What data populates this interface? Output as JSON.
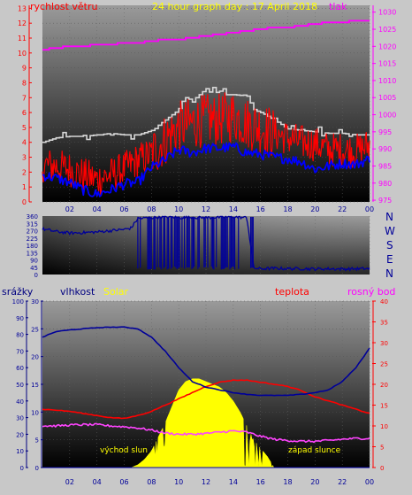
{
  "title": "24 hour graph day : 17 April 2018",
  "colors": {
    "background": "#c8c8c8",
    "wind_gust": "#d8d8d8",
    "wind_speed": "#ff0000",
    "wind_avg": "#0000ff",
    "pressure": "#ff00ff",
    "direction": "#000099",
    "humidity": "#000099",
    "solar": "#ffff00",
    "temperature": "#ff0000",
    "dewpoint": "#ff44ff",
    "rain": "#0000aa",
    "title": "#ffff00",
    "axis_red": "#ff0000",
    "axis_magenta": "#ff00ff",
    "axis_blue": "#000080",
    "axis_text": "#000099"
  },
  "x_ticks": [
    "02",
    "04",
    "06",
    "08",
    "10",
    "12",
    "14",
    "16",
    "18",
    "20",
    "22",
    "00"
  ],
  "wind_dir_labels": [
    "N",
    "W",
    "S",
    "E",
    "N"
  ],
  "annotations": {
    "sunrise": "východ slun",
    "sunset": "západ slunce"
  },
  "chart_data": [
    {
      "type": "line",
      "panel": "wind-pressure",
      "title": "24 hour graph day : 17 April 2018",
      "left_axis_label": "rychlost větru",
      "right_axis_label": "tlak",
      "left_ticks": [
        "0",
        "1",
        "2",
        "3",
        "4",
        "5",
        "6",
        "7",
        "8",
        "9",
        "10",
        "11",
        "12",
        "13"
      ],
      "right_ticks": [
        "975",
        "980",
        "985",
        "990",
        "995",
        "1000",
        "1005",
        "1010",
        "1015",
        "1020",
        "1025",
        "1030"
      ],
      "ylim_left": [
        0,
        13.2
      ],
      "ylim_right": [
        974.5,
        1032
      ],
      "x_range_hours": [
        0,
        24
      ],
      "series": [
        {
          "key": "gust",
          "axis": "left",
          "x": [
            0,
            1,
            2,
            3,
            4,
            5,
            6,
            7,
            8,
            9,
            10,
            10.5,
            11,
            12,
            13,
            13.5,
            14,
            15,
            15.5,
            16,
            17,
            18,
            19,
            20,
            21,
            22,
            23,
            24
          ],
          "values": [
            4.0,
            4.3,
            4.4,
            4.4,
            4.5,
            4.6,
            4.5,
            4.5,
            4.8,
            5.5,
            6.2,
            7.0,
            6.8,
            7.6,
            7.5,
            7.2,
            7.2,
            7.1,
            6.2,
            6.0,
            5.5,
            4.9,
            4.8,
            4.7,
            4.6,
            4.6,
            4.5,
            4.5
          ]
        },
        {
          "key": "speed",
          "axis": "left",
          "x": [
            0,
            1,
            2,
            3,
            4,
            5,
            6,
            7,
            8,
            9,
            10,
            11,
            12,
            13,
            14,
            15,
            16,
            17,
            18,
            19,
            20,
            21,
            22,
            23,
            24
          ],
          "values": [
            2.5,
            2.4,
            2.2,
            1.8,
            1.5,
            1.8,
            2.2,
            2.8,
            3.2,
            4.2,
            5.0,
            5.3,
            5.5,
            5.5,
            5.8,
            5.3,
            5.0,
            4.6,
            4.3,
            4.0,
            3.9,
            3.5,
            3.5,
            3.4,
            3.8
          ]
        },
        {
          "key": "avg",
          "axis": "left",
          "x": [
            0,
            1,
            2,
            3,
            4,
            5,
            6,
            7,
            8,
            9,
            10,
            11,
            12,
            13,
            14,
            15,
            16,
            17,
            18,
            19,
            20,
            21,
            22,
            23,
            24
          ],
          "values": [
            1.8,
            1.6,
            1.3,
            0.8,
            0.5,
            0.8,
            1.2,
            1.3,
            2.3,
            2.8,
            3.5,
            3.3,
            3.6,
            3.6,
            3.7,
            3.3,
            3.2,
            3.0,
            2.9,
            2.7,
            2.2,
            2.4,
            2.6,
            2.5,
            2.9
          ]
        },
        {
          "key": "pressure",
          "axis": "right",
          "x": [
            0,
            1,
            2,
            3,
            4,
            5,
            6,
            7,
            8,
            9,
            10,
            11,
            12,
            13,
            14,
            15,
            16,
            17,
            18,
            19,
            20,
            21,
            22,
            23,
            24
          ],
          "values": [
            1019.0,
            1019.5,
            1020.0,
            1020.0,
            1020.5,
            1020.5,
            1021.0,
            1021.0,
            1021.5,
            1022.0,
            1022.0,
            1022.5,
            1023.0,
            1023.5,
            1024.0,
            1024.5,
            1025.0,
            1025.5,
            1025.5,
            1026.0,
            1026.5,
            1027.0,
            1027.0,
            1027.5,
            1027.5
          ]
        }
      ]
    },
    {
      "type": "line",
      "panel": "wind-direction",
      "ylim": [
        0,
        360
      ],
      "left_ticks": [
        "0",
        "45",
        "90",
        "135",
        "180",
        "225",
        "270",
        "315",
        "360"
      ],
      "x_range_hours": [
        0,
        24
      ],
      "series": [
        {
          "key": "direction",
          "x": [
            0,
            1,
            2,
            3,
            4,
            5,
            6,
            6.5,
            7,
            8,
            9,
            10,
            11,
            12,
            13,
            14,
            15,
            15.5,
            16,
            17,
            18,
            19,
            20,
            21,
            22,
            23,
            24
          ],
          "values": [
            280,
            265,
            255,
            258,
            262,
            270,
            278,
            286,
            345,
            350,
            355,
            350,
            352,
            350,
            352,
            355,
            350,
            40,
            35,
            38,
            36,
            36,
            34,
            35,
            34,
            35,
            36
          ]
        }
      ],
      "scatter_band": {
        "x_range": [
          7,
          15.5
        ],
        "values_range": [
          30,
          355
        ]
      }
    },
    {
      "type": "line",
      "panel": "rain-humidity-solar-temp",
      "left_axis_label": "srážky",
      "left2_axis_label": "vlhkost",
      "solar_label": "Solar",
      "right_axis_label": "teplota",
      "right2_axis_label": "rosný bod",
      "rain_ticks": [
        "0",
        "10",
        "20",
        "30",
        "40",
        "50",
        "60",
        "70",
        "80",
        "90",
        "100"
      ],
      "humidity_ticks": [
        "0",
        "5",
        "10",
        "15",
        "20",
        "25",
        "30"
      ],
      "temp_ticks": [
        "0",
        "5",
        "10",
        "15",
        "20",
        "25",
        "30",
        "35",
        "40"
      ],
      "ylim_rain": [
        0,
        100
      ],
      "ylim_humidity": [
        0,
        30
      ],
      "ylim_temp": [
        0,
        40
      ],
      "x_range_hours": [
        0,
        24
      ],
      "series": [
        {
          "key": "humidity",
          "axis": "humidity",
          "x": [
            0,
            1,
            2,
            3,
            4,
            5,
            6,
            7,
            8,
            9,
            10,
            11,
            12,
            13,
            14,
            15,
            16,
            17,
            18,
            19,
            20,
            21,
            22,
            23,
            24
          ],
          "values": [
            23.5,
            24.5,
            24.8,
            25.0,
            25.2,
            25.3,
            25.3,
            25.0,
            23.5,
            21.0,
            18.0,
            15.5,
            14.5,
            14.0,
            13.5,
            13.2,
            13.0,
            13.0,
            13.0,
            13.2,
            13.5,
            14.0,
            15.5,
            18.0,
            21.5
          ]
        },
        {
          "key": "temperature",
          "axis": "temp",
          "x": [
            0,
            1,
            2,
            3,
            4,
            5,
            6,
            7,
            8,
            9,
            10,
            11,
            12,
            13,
            14,
            15,
            16,
            17,
            18,
            19,
            20,
            21,
            22,
            23,
            24
          ],
          "values": [
            14.0,
            13.8,
            13.5,
            13.0,
            12.5,
            12.0,
            11.8,
            12.5,
            13.5,
            15.0,
            16.5,
            18.0,
            19.5,
            20.5,
            21.0,
            21.0,
            20.5,
            20.0,
            19.5,
            18.5,
            17.0,
            16.0,
            15.0,
            14.0,
            13.0
          ]
        },
        {
          "key": "dewpoint",
          "axis": "temp",
          "x": [
            0,
            1,
            2,
            3,
            4,
            5,
            6,
            7,
            8,
            9,
            10,
            11,
            12,
            13,
            14,
            15,
            16,
            17,
            18,
            19,
            20,
            21,
            22,
            23,
            24
          ],
          "values": [
            10.0,
            10.0,
            10.2,
            10.3,
            10.3,
            10.0,
            9.8,
            9.5,
            9.0,
            8.3,
            8.0,
            8.0,
            8.2,
            8.5,
            8.8,
            8.5,
            7.5,
            6.8,
            6.5,
            6.3,
            6.3,
            6.5,
            6.8,
            7.0,
            7.0
          ]
        },
        {
          "key": "solar",
          "axis": "humidity",
          "x": [
            6.5,
            7.0,
            7.5,
            8.0,
            8.5,
            9.0,
            9.5,
            10.0,
            10.5,
            11.0,
            11.5,
            12.0,
            12.5,
            13.0,
            13.5,
            14.0,
            14.5,
            15.0,
            15.5,
            16.0,
            16.5,
            17.0
          ],
          "values": [
            0,
            0.5,
            1.5,
            3.0,
            5.5,
            8.0,
            11.0,
            14.0,
            15.5,
            16.0,
            16.0,
            15.5,
            15.0,
            14.5,
            13.5,
            12.0,
            10.0,
            7.5,
            5.0,
            3.5,
            2.0,
            0
          ]
        },
        {
          "key": "rain",
          "axis": "rain",
          "x": [
            0,
            24
          ],
          "values": [
            0,
            0
          ]
        }
      ]
    }
  ]
}
